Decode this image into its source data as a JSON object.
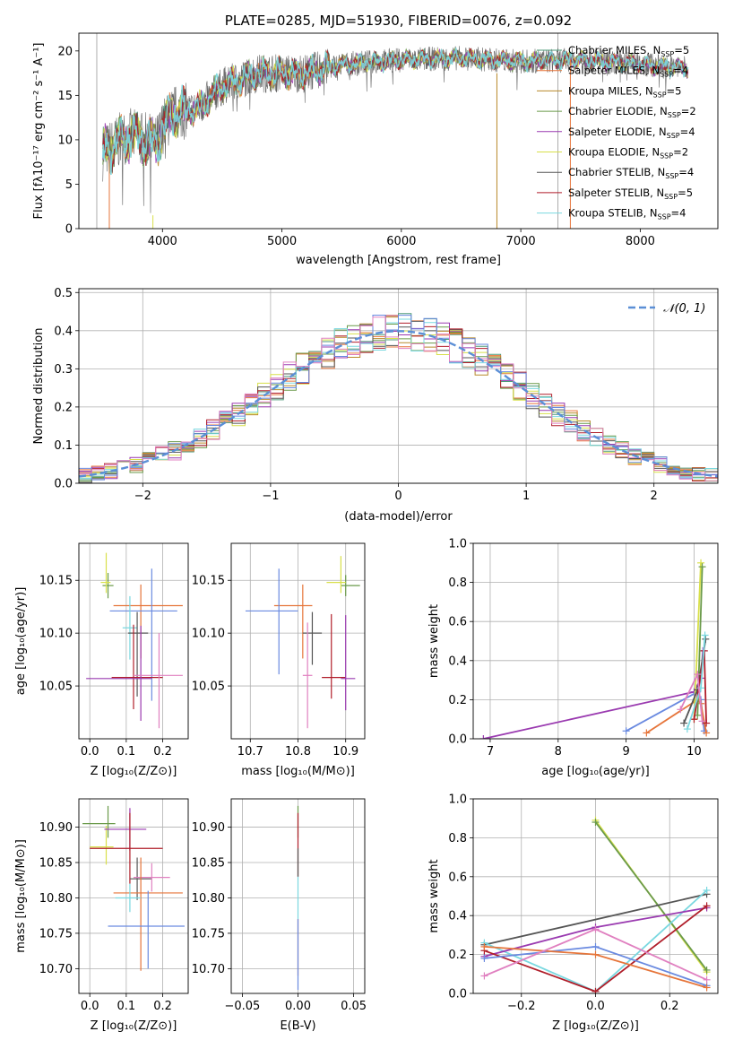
{
  "colors": {
    "chabrier_miles": "#4c9a78",
    "salpeter_miles": "#e6753a",
    "kroupa_miles": "#b8892a",
    "chabrier_elodie": "#6a9a4a",
    "salpeter_elodie": "#9a3ab0",
    "kroupa_elodie": "#d8e04a",
    "chabrier_stelib": "#555555",
    "salpeter_stelib": "#b01e2a",
    "kroupa_stelib": "#7ad8e0",
    "blue_model": "#6a8ae0",
    "pink_model": "#e080c0",
    "gauss": "#5b8fd6"
  },
  "legend": [
    {
      "key": "chabrier_miles",
      "label": "Chabrier MILES, N",
      "sub": "SSP",
      "eq": "=5"
    },
    {
      "key": "salpeter_miles",
      "label": "Salpeter MILES, N",
      "sub": "SSP",
      "eq": "=4"
    },
    {
      "key": "kroupa_miles",
      "label": "Kroupa MILES, N",
      "sub": "SSP",
      "eq": "=5"
    },
    {
      "key": "chabrier_elodie",
      "label": "Chabrier ELODIE, N",
      "sub": "SSP",
      "eq": "=2"
    },
    {
      "key": "salpeter_elodie",
      "label": "Salpeter ELODIE, N",
      "sub": "SSP",
      "eq": "=4"
    },
    {
      "key": "kroupa_elodie",
      "label": "Kroupa ELODIE, N",
      "sub": "SSP",
      "eq": "=2"
    },
    {
      "key": "chabrier_stelib",
      "label": "Chabrier STELIB, N",
      "sub": "SSP",
      "eq": "=4"
    },
    {
      "key": "salpeter_stelib",
      "label": "Salpeter STELIB, N",
      "sub": "SSP",
      "eq": "=5"
    },
    {
      "key": "kroupa_stelib",
      "label": "Kroupa STELIB, N",
      "sub": "SSP",
      "eq": "=4"
    }
  ],
  "chart_data": [
    {
      "id": "spectrum",
      "type": "line",
      "title": "PLATE=0285, MJD=51930, FIBERID=0076, z=0.092",
      "xlabel": "wavelength [Angstrom, rest frame]",
      "ylabel": "Flux [fλ10⁻¹⁷ erg cm⁻² s⁻¹ A⁻¹]",
      "xlim": [
        3300,
        8650
      ],
      "ylim": [
        0,
        22
      ],
      "xticks": [
        4000,
        5000,
        6000,
        7000,
        8000
      ],
      "yticks": [
        0,
        5,
        10,
        15,
        20
      ],
      "continuum_knots": [
        [
          3500,
          8.5
        ],
        [
          3600,
          9.5
        ],
        [
          3700,
          10.5
        ],
        [
          3800,
          10.2
        ],
        [
          3950,
          9.5
        ],
        [
          4000,
          11.5
        ],
        [
          4100,
          13
        ],
        [
          4300,
          13.5
        ],
        [
          4500,
          16
        ],
        [
          4800,
          17.5
        ],
        [
          5000,
          17.5
        ],
        [
          5200,
          17.5
        ],
        [
          5500,
          18.5
        ],
        [
          6000,
          19
        ],
        [
          6500,
          19.2
        ],
        [
          7000,
          18.8
        ],
        [
          7500,
          19
        ],
        [
          8000,
          18.5
        ],
        [
          8400,
          18
        ]
      ],
      "features": [
        "observed spectrum (grey)",
        "9 SSP model fits overlapping"
      ]
    },
    {
      "id": "residuals",
      "type": "histogram",
      "xlabel": "(data-model)/error",
      "ylabel": "Normed distribution",
      "xlim": [
        -2.5,
        2.5
      ],
      "ylim": [
        0,
        0.51
      ],
      "xticks": [
        -2,
        -1,
        0,
        1,
        2
      ],
      "yticks": [
        0.0,
        0.1,
        0.2,
        0.3,
        0.4,
        0.5
      ],
      "bin_width": 0.1,
      "legend": "𝒩(0, 1)",
      "series_keys": [
        "chabrier_miles",
        "salpeter_miles",
        "kroupa_miles",
        "chabrier_elodie",
        "salpeter_elodie",
        "kroupa_elodie",
        "chabrier_stelib",
        "salpeter_stelib",
        "kroupa_stelib",
        "blue_model",
        "pink_model"
      ]
    },
    {
      "id": "z_age",
      "type": "scatter",
      "xlabel": "Z [log₁₀(Z/Z⊙)]",
      "ylabel": "age  [log₁₀(age/yr)]",
      "xlim": [
        -0.03,
        0.27
      ],
      "ylim": [
        10.0,
        10.185
      ],
      "xticks": [
        0.0,
        0.1,
        0.2
      ],
      "yticks": [
        10.05,
        10.1,
        10.15
      ],
      "points": [
        {
          "key": "chabrier_elodie",
          "x": 0.05,
          "y": 10.145,
          "xerr": [
            0.015,
            0.015
          ],
          "yerr": [
            0.012,
            0.012
          ]
        },
        {
          "key": "kroupa_elodie",
          "x": 0.045,
          "y": 10.148,
          "xerr": [
            0.015,
            0.012
          ],
          "yerr": [
            0.01,
            0.028
          ]
        },
        {
          "key": "salpeter_miles",
          "x": 0.14,
          "y": 10.126,
          "xerr": [
            0.075,
            0.115
          ],
          "yerr": [
            0.05,
            0.02
          ]
        },
        {
          "key": "blue_model",
          "x": 0.17,
          "y": 10.121,
          "xerr": [
            0.115,
            0.07
          ],
          "yerr": [
            0.085,
            0.04
          ]
        },
        {
          "key": "kroupa_stelib",
          "x": 0.11,
          "y": 10.105,
          "xerr": [
            0.02,
            0.02
          ],
          "yerr": [
            0.03,
            0.03
          ]
        },
        {
          "key": "chabrier_stelib",
          "x": 0.13,
          "y": 10.1,
          "xerr": [
            0.025,
            0.03
          ],
          "yerr": [
            0.06,
            0.02
          ]
        },
        {
          "key": "salpeter_stelib",
          "x": 0.12,
          "y": 10.058,
          "xerr": [
            0.06,
            0.08
          ],
          "yerr": [
            0.03,
            0.05
          ]
        },
        {
          "key": "salpeter_elodie",
          "x": 0.14,
          "y": 10.057,
          "xerr": [
            0.15,
            0.03
          ],
          "yerr": [
            0.04,
            0.05
          ]
        },
        {
          "key": "pink_model",
          "x": 0.19,
          "y": 10.06,
          "xerr": [
            0.07,
            0.065
          ],
          "yerr": [
            0.05,
            0.04
          ]
        }
      ]
    },
    {
      "id": "mass_age",
      "type": "scatter",
      "xlabel": "mass [log₁₀(M/M⊙)]",
      "ylabel": "",
      "xlim": [
        10.66,
        10.94
      ],
      "ylim": [
        10.0,
        10.185
      ],
      "xticks": [
        10.7,
        10.8,
        10.9
      ],
      "yticks": [
        10.05,
        10.1,
        10.15
      ],
      "points": [
        {
          "key": "chabrier_elodie",
          "x": 10.9,
          "y": 10.145,
          "xerr": [
            0.01,
            0.03
          ],
          "yerr": [
            0.01,
            0.01
          ]
        },
        {
          "key": "kroupa_elodie",
          "x": 10.89,
          "y": 10.148,
          "xerr": [
            0.03,
            0.01
          ],
          "yerr": [
            0.01,
            0.025
          ]
        },
        {
          "key": "salpeter_miles",
          "x": 10.81,
          "y": 10.126,
          "xerr": [
            0.06,
            0.02
          ],
          "yerr": [
            0.05,
            0.02
          ]
        },
        {
          "key": "blue_model",
          "x": 10.76,
          "y": 10.121,
          "xerr": [
            0.07,
            0.04
          ],
          "yerr": [
            0.06,
            0.04
          ]
        },
        {
          "key": "chabrier_stelib",
          "x": 10.83,
          "y": 10.1,
          "xerr": [
            0.02,
            0.02
          ],
          "yerr": [
            0.03,
            0.02
          ]
        },
        {
          "key": "salpeter_stelib",
          "x": 10.87,
          "y": 10.058,
          "xerr": [
            0.02,
            0.03
          ],
          "yerr": [
            0.02,
            0.06
          ]
        },
        {
          "key": "salpeter_elodie",
          "x": 10.9,
          "y": 10.057,
          "xerr": [
            0.01,
            0.02
          ],
          "yerr": [
            0.03,
            0.06
          ]
        },
        {
          "key": "pink_model",
          "x": 10.82,
          "y": 10.06,
          "xerr": [
            0.01,
            0.01
          ],
          "yerr": [
            0.05,
            0.05
          ]
        }
      ]
    },
    {
      "id": "age_weight",
      "type": "line",
      "xlabel": "age  [log₁₀(age/yr)]",
      "ylabel": "mass weight",
      "xlim": [
        6.75,
        10.35
      ],
      "ylim": [
        0,
        1
      ],
      "xticks": [
        7,
        8,
        9,
        10
      ],
      "yticks": [
        0.0,
        0.2,
        0.4,
        0.6,
        0.8,
        1.0
      ],
      "series": [
        {
          "key": "salpeter_elodie",
          "points": [
            [
              6.9,
              0.0
            ],
            [
              10.0,
              0.24
            ],
            [
              10.1,
              0.31
            ],
            [
              10.13,
              0.45
            ]
          ]
        },
        {
          "key": "blue_model",
          "points": [
            [
              9.0,
              0.04
            ],
            [
              10.05,
              0.24
            ],
            [
              10.1,
              0.2
            ],
            [
              10.15,
              0.04
            ]
          ]
        },
        {
          "key": "salpeter_miles",
          "points": [
            [
              9.3,
              0.03
            ],
            [
              10.05,
              0.2
            ],
            [
              10.1,
              0.18
            ],
            [
              10.18,
              0.03
            ]
          ]
        },
        {
          "key": "kroupa_elodie",
          "points": [
            [
              10.0,
              0.1
            ],
            [
              10.1,
              0.9
            ]
          ]
        },
        {
          "key": "chabrier_elodie",
          "points": [
            [
              10.05,
              0.12
            ],
            [
              10.12,
              0.88
            ]
          ]
        },
        {
          "key": "chabrier_stelib",
          "points": [
            [
              9.85,
              0.08
            ],
            [
              10.05,
              0.25
            ],
            [
              10.17,
              0.51
            ]
          ]
        },
        {
          "key": "salpeter_stelib",
          "points": [
            [
              10.0,
              0.1
            ],
            [
              10.15,
              0.45
            ],
            [
              10.18,
              0.08
            ]
          ]
        },
        {
          "key": "kroupa_stelib",
          "points": [
            [
              9.9,
              0.05
            ],
            [
              10.1,
              0.26
            ],
            [
              10.16,
              0.53
            ]
          ]
        },
        {
          "key": "pink_model",
          "points": [
            [
              9.8,
              0.15
            ],
            [
              10.05,
              0.33
            ],
            [
              10.12,
              0.09
            ]
          ]
        }
      ]
    },
    {
      "id": "z_mass",
      "type": "scatter",
      "xlabel": "Z [log₁₀(Z/Z⊙)]",
      "ylabel": "mass [log₁₀(M/M⊙)]",
      "xlim": [
        -0.03,
        0.27
      ],
      "ylim": [
        10.665,
        10.94
      ],
      "xticks": [
        0.0,
        0.1,
        0.2
      ],
      "yticks": [
        10.7,
        10.75,
        10.8,
        10.85,
        10.9
      ],
      "points": [
        {
          "key": "chabrier_elodie",
          "x": 0.05,
          "y": 10.905,
          "xerr": [
            0.07,
            0.02
          ],
          "yerr": [
            0.02,
            0.025
          ]
        },
        {
          "key": "kroupa_elodie",
          "x": 0.045,
          "y": 10.872,
          "xerr": [
            0.045,
            0.02
          ],
          "yerr": [
            0.025,
            0.03
          ]
        },
        {
          "key": "salpeter_elodie",
          "x": 0.11,
          "y": 10.897,
          "xerr": [
            0.07,
            0.045
          ],
          "yerr": [
            0.03,
            0.03
          ]
        },
        {
          "key": "salpeter_stelib",
          "x": 0.11,
          "y": 10.87,
          "xerr": [
            0.11,
            0.09
          ],
          "yerr": [
            0.05,
            0.05
          ]
        },
        {
          "key": "chabrier_stelib",
          "x": 0.13,
          "y": 10.827,
          "xerr": [
            0.02,
            0.04
          ],
          "yerr": [
            0.03,
            0.03
          ]
        },
        {
          "key": "pink_model",
          "x": 0.17,
          "y": 10.829,
          "xerr": [
            0.05,
            0.05
          ],
          "yerr": [
            0.02,
            0.02
          ]
        },
        {
          "key": "salpeter_miles",
          "x": 0.14,
          "y": 10.807,
          "xerr": [
            0.075,
            0.115
          ],
          "yerr": [
            0.11,
            0.05
          ]
        },
        {
          "key": "kroupa_stelib",
          "x": 0.11,
          "y": 10.8,
          "xerr": [
            0.04,
            0.03
          ],
          "yerr": [
            0.02,
            0.02
          ]
        },
        {
          "key": "blue_model",
          "x": 0.16,
          "y": 10.76,
          "xerr": [
            0.11,
            0.1
          ],
          "yerr": [
            0.06,
            0.05
          ]
        }
      ]
    },
    {
      "id": "ebv_mass",
      "type": "scatter",
      "xlabel": "E(B-V)",
      "ylabel": "",
      "xlim": [
        -0.06,
        0.06
      ],
      "ylim": [
        10.665,
        10.94
      ],
      "xticks": [
        -0.05,
        0.0,
        0.05
      ],
      "yticks": [
        10.7,
        10.75,
        10.8,
        10.85,
        10.9
      ],
      "points": [
        {
          "key": "chabrier_elodie",
          "x": 0.0,
          "y": 10.905,
          "yerr": [
            0.02,
            0.025
          ]
        },
        {
          "key": "salpeter_stelib",
          "x": 0.0,
          "y": 10.87,
          "yerr": [
            0.04,
            0.05
          ]
        },
        {
          "key": "chabrier_stelib",
          "x": 0.0,
          "y": 10.85,
          "yerr": [
            0.02,
            0.02
          ]
        },
        {
          "key": "kroupa_stelib",
          "x": 0.0,
          "y": 10.8,
          "yerr": [
            0.03,
            0.03
          ]
        },
        {
          "key": "salpeter_miles",
          "x": 0.0,
          "y": 10.74,
          "yerr": [
            0.05,
            0.03
          ]
        },
        {
          "key": "blue_model",
          "x": 0.0,
          "y": 10.72,
          "yerr": [
            0.05,
            0.05
          ]
        }
      ]
    },
    {
      "id": "z_weight",
      "type": "line",
      "xlabel": "Z [log₁₀(Z/Z⊙)]",
      "ylabel": "mass weight",
      "xlim": [
        -0.33,
        0.33
      ],
      "ylim": [
        0,
        1
      ],
      "xticks": [
        -0.2,
        0.0,
        0.2
      ],
      "yticks": [
        0.0,
        0.2,
        0.4,
        0.6,
        0.8,
        1.0
      ],
      "series": [
        {
          "key": "kroupa_elodie",
          "points": [
            [
              0.0,
              0.89
            ],
            [
              0.3,
              0.11
            ]
          ]
        },
        {
          "key": "chabrier_elodie",
          "points": [
            [
              0.0,
              0.88
            ],
            [
              0.3,
              0.12
            ]
          ]
        },
        {
          "key": "chabrier_stelib",
          "points": [
            [
              -0.3,
              0.25
            ],
            [
              0.3,
              0.51
            ]
          ]
        },
        {
          "key": "kroupa_stelib",
          "points": [
            [
              -0.3,
              0.26
            ],
            [
              0.0,
              0.01
            ],
            [
              0.3,
              0.53
            ]
          ]
        },
        {
          "key": "salpeter_elodie",
          "points": [
            [
              -0.3,
              0.19
            ],
            [
              0.0,
              0.34
            ],
            [
              0.3,
              0.44
            ]
          ]
        },
        {
          "key": "salpeter_stelib",
          "points": [
            [
              -0.3,
              0.22
            ],
            [
              0.0,
              0.01
            ],
            [
              0.3,
              0.45
            ]
          ]
        },
        {
          "key": "blue_model",
          "points": [
            [
              -0.3,
              0.18
            ],
            [
              0.0,
              0.24
            ],
            [
              0.3,
              0.04
            ]
          ]
        },
        {
          "key": "salpeter_miles",
          "points": [
            [
              -0.3,
              0.24
            ],
            [
              0.0,
              0.2
            ],
            [
              0.3,
              0.03
            ]
          ]
        },
        {
          "key": "pink_model",
          "points": [
            [
              -0.3,
              0.09
            ],
            [
              0.0,
              0.33
            ],
            [
              0.3,
              0.07
            ]
          ]
        }
      ]
    }
  ]
}
